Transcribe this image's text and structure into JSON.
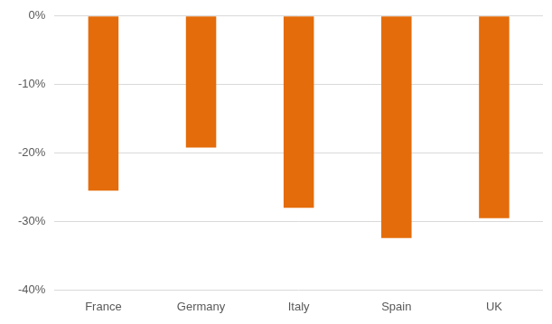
{
  "chart_data": {
    "type": "bar",
    "categories": [
      "France",
      "Germany",
      "Italy",
      "Spain",
      "UK"
    ],
    "values": [
      -25.5,
      -19.2,
      -28.0,
      -32.4,
      -29.5
    ],
    "color": "#e46c0a",
    "ylim": [
      -40,
      0
    ],
    "yticks": [
      {
        "value": -40,
        "label": "-40%"
      },
      {
        "value": -30,
        "label": "-30%"
      },
      {
        "value": -20,
        "label": "-20%"
      },
      {
        "value": -10,
        "label": "-10%"
      },
      {
        "value": 0,
        "label": "0%"
      }
    ],
    "grid": true
  }
}
